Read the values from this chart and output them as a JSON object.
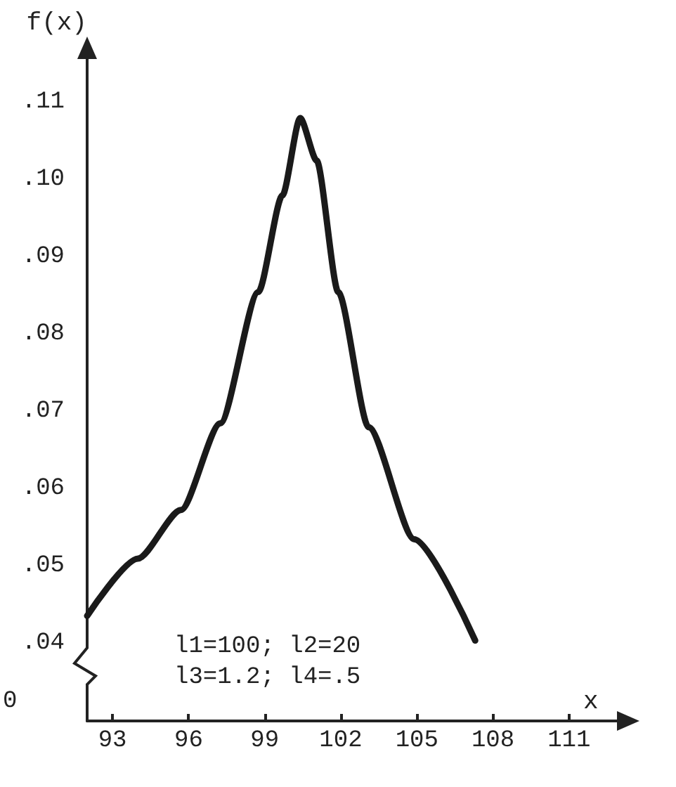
{
  "chart_data": {
    "type": "line",
    "xlabel": "x",
    "ylabel": "f(x)",
    "x": [
      92.0,
      94.0,
      95.7,
      97.25,
      98.75,
      99.7,
      100.4,
      101.05,
      101.9,
      103.1,
      104.9,
      107.3
    ],
    "series": [
      {
        "color": "#1a1a1a",
        "values": [
          0.0436,
          0.051,
          0.0573,
          0.0685,
          0.0855,
          0.098,
          0.108,
          0.1025,
          0.0855,
          0.068,
          0.0535,
          0.0404
        ]
      }
    ],
    "xlim": [
      92,
      113
    ],
    "xticks": [
      93,
      96,
      99,
      102,
      105,
      108,
      111
    ],
    "ylim": [
      0.03,
      0.116
    ],
    "yticks": [
      {
        "value": 0.04,
        "label": ".04"
      },
      {
        "value": 0.05,
        "label": ".05"
      },
      {
        "value": 0.06,
        "label": ".06"
      },
      {
        "value": 0.07,
        "label": ".07"
      },
      {
        "value": 0.08,
        "label": ".08"
      },
      {
        "value": 0.09,
        "label": ".09"
      },
      {
        "value": 0.1,
        "label": ".10"
      },
      {
        "value": 0.11,
        "label": ".11"
      }
    ],
    "annotations": [
      "l1=100; l2=20",
      "l3=1.2; l4=.5",
      "0"
    ],
    "grid": false,
    "marker": "none",
    "line_style": "solid"
  }
}
